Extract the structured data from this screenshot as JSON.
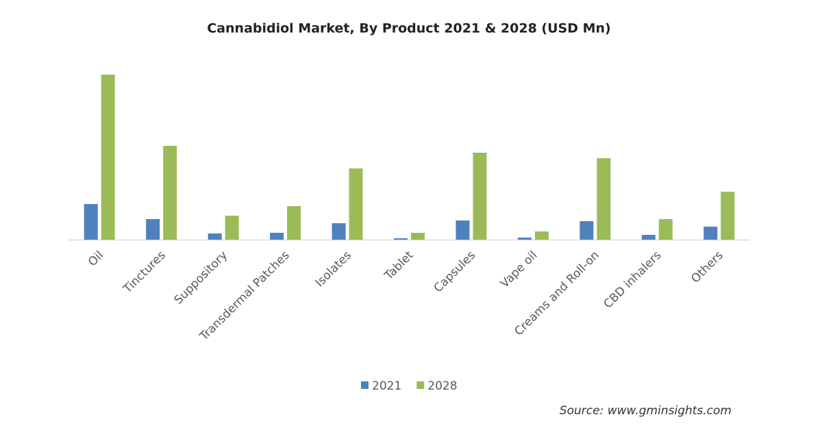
{
  "chart_data": {
    "type": "bar",
    "title": "Cannabidiol  Market,  By Product  2021 & 2028 (USD  Mn)",
    "categories": [
      "Oil",
      "Tinctures",
      "Suppository",
      "Transdermal Patches",
      "Isolates",
      "Tablet",
      "Capsules",
      "Vape oil",
      "Creams and Roll-on",
      "CBD inhalers",
      "Others"
    ],
    "series": [
      {
        "name": "2021",
        "color": "#4f81bd",
        "values": [
          52,
          30,
          9,
          10,
          24,
          2,
          28,
          3,
          27,
          7,
          19
        ]
      },
      {
        "name": "2028",
        "color": "#9bbb59",
        "values": [
          241,
          137,
          35,
          49,
          104,
          10,
          127,
          12,
          119,
          30,
          70
        ]
      }
    ],
    "legend": "bottom",
    "source": "Source: www.gminsights.com"
  }
}
